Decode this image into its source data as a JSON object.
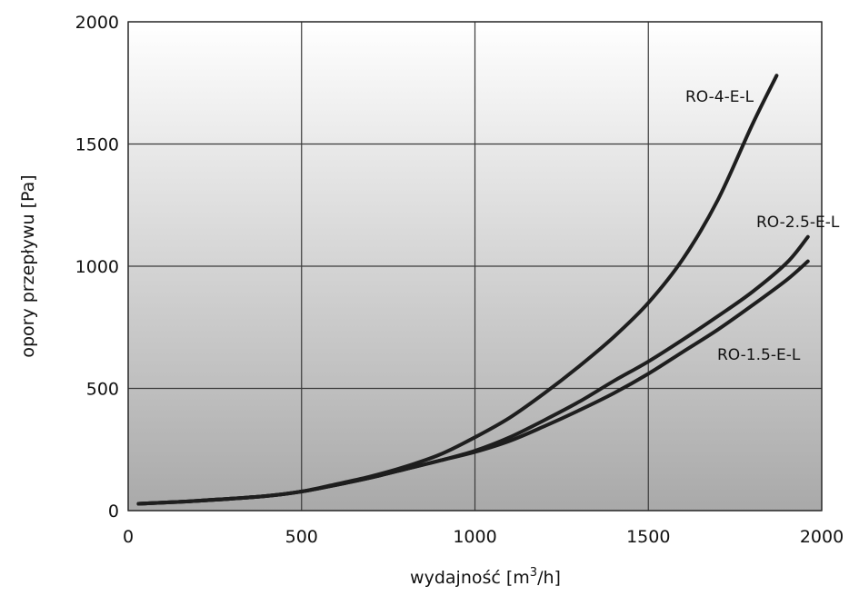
{
  "chart_data": {
    "type": "line",
    "title": "",
    "xlabel_prefix": "wydajność [m",
    "xlabel_sup": "3",
    "xlabel_suffix": "/h]",
    "ylabel": "opory przepływu [Pa]",
    "xlim": [
      0,
      2000
    ],
    "ylim": [
      0,
      2000
    ],
    "xticks": [
      0,
      500,
      1000,
      1500,
      2000
    ],
    "yticks": [
      0,
      500,
      1000,
      1500,
      2000
    ],
    "grid": true,
    "background_gradient": [
      "#ffffff",
      "#a9a9a9"
    ],
    "line_color": "#1e1e1e",
    "series": [
      {
        "name": "RO-4-E-L",
        "x": [
          30,
          200,
          400,
          500,
          600,
          700,
          800,
          900,
          1000,
          1100,
          1200,
          1300,
          1400,
          1500,
          1600,
          1700,
          1800,
          1870
        ],
        "y": [
          28,
          40,
          60,
          78,
          108,
          140,
          180,
          230,
          300,
          380,
          480,
          590,
          710,
          850,
          1030,
          1270,
          1580,
          1780
        ]
      },
      {
        "name": "RO-2.5-E-L",
        "x": [
          30,
          200,
          400,
          500,
          600,
          700,
          800,
          900,
          1000,
          1100,
          1200,
          1300,
          1400,
          1500,
          1600,
          1700,
          1800,
          1900,
          1960
        ],
        "y": [
          28,
          40,
          60,
          78,
          105,
          135,
          170,
          205,
          245,
          300,
          370,
          445,
          530,
          610,
          700,
          795,
          895,
          1015,
          1120
        ]
      },
      {
        "name": "RO-1.5-E-L",
        "x": [
          30,
          200,
          400,
          500,
          600,
          700,
          800,
          900,
          1000,
          1100,
          1200,
          1300,
          1400,
          1500,
          1600,
          1700,
          1800,
          1900,
          1960
        ],
        "y": [
          28,
          40,
          60,
          78,
          105,
          135,
          170,
          205,
          240,
          285,
          345,
          410,
          480,
          560,
          650,
          740,
          840,
          945,
          1020
        ]
      }
    ]
  }
}
